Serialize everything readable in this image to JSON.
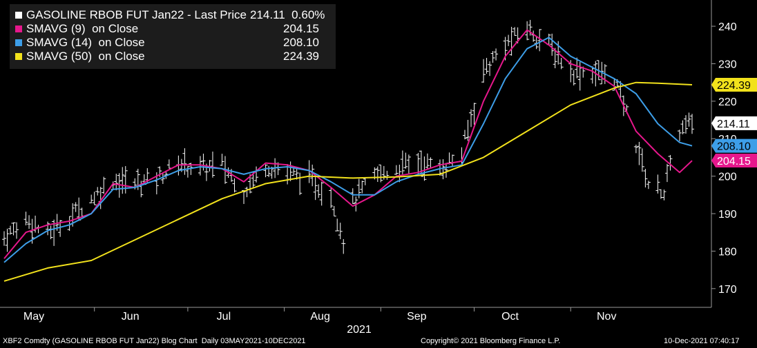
{
  "legend": [
    {
      "name": "GASOLINE RBOB FUT Jan22 - Last Price",
      "value": "214.11  0.60%",
      "color": "#ffffff"
    },
    {
      "name": "SMAVG (9)  on Close",
      "value": "204.15",
      "color": "#e6178c"
    },
    {
      "name": "SMAVG (14)  on Close",
      "value": "208.10",
      "color": "#3d9ee8"
    },
    {
      "name": "SMAVG (50)  on Close",
      "value": "224.39",
      "color": "#f2e21c"
    }
  ],
  "footer": {
    "left": "XBF2 Comdty (GASOLINE RBOB FUT Jan22) Blog Chart  Daily 03MAY2021-10DEC2021",
    "center": "Copyright© 2021 Bloomberg Finance L.P.",
    "right": "10-Dec-2021 07:40:17"
  },
  "chart_data": {
    "type": "line",
    "title": "GASOLINE RBOB FUT Jan22",
    "x_axis": {
      "ticks": [
        "May",
        "Jun",
        "Jul",
        "Aug",
        "Sep",
        "Oct",
        "Nov"
      ],
      "year_label": "2021",
      "range": [
        "2021-05-03",
        "2021-12-10"
      ]
    },
    "y_axis": {
      "ticks": [
        170,
        180,
        190,
        200,
        210,
        220,
        230,
        240
      ],
      "range": [
        165,
        247
      ],
      "position": "right"
    },
    "grid": false,
    "legend_position": "top-left",
    "series": [
      {
        "name": "GASOLINE RBOB FUT Jan22 - Last Price",
        "kind": "ohlc-bars",
        "color": "#ffffff",
        "anchors": [
          [
            "2021-05-03",
            183.5
          ],
          [
            "2021-05-10",
            188.5
          ],
          [
            "2021-05-17",
            184.5
          ],
          [
            "2021-05-24",
            189
          ],
          [
            "2021-05-31",
            194
          ],
          [
            "2021-06-07",
            199
          ],
          [
            "2021-06-14",
            198
          ],
          [
            "2021-06-21",
            199.5
          ],
          [
            "2021-06-28",
            203.5
          ],
          [
            "2021-07-05",
            202
          ],
          [
            "2021-07-12",
            203
          ],
          [
            "2021-07-19",
            196
          ],
          [
            "2021-07-26",
            203
          ],
          [
            "2021-08-02",
            201
          ],
          [
            "2021-08-09",
            199
          ],
          [
            "2021-08-16",
            195
          ],
          [
            "2021-08-20",
            183
          ],
          [
            "2021-08-23",
            193
          ],
          [
            "2021-08-30",
            200
          ],
          [
            "2021-09-06",
            202
          ],
          [
            "2021-09-13",
            204
          ],
          [
            "2021-09-20",
            202
          ],
          [
            "2021-09-27",
            206
          ],
          [
            "2021-10-04",
            228
          ],
          [
            "2021-10-11",
            235
          ],
          [
            "2021-10-18",
            239.5
          ],
          [
            "2021-10-25",
            235
          ],
          [
            "2021-11-01",
            228
          ],
          [
            "2021-11-08",
            228
          ],
          [
            "2021-11-15",
            226
          ],
          [
            "2021-11-19",
            217
          ],
          [
            "2021-11-26",
            198
          ],
          [
            "2021-12-01",
            196
          ],
          [
            "2021-12-06",
            212
          ],
          [
            "2021-12-10",
            214.11
          ]
        ]
      },
      {
        "name": "SMAVG (9)  on Close",
        "kind": "line",
        "color": "#e6178c",
        "points": [
          [
            "2021-05-03",
            178
          ],
          [
            "2021-05-10",
            185
          ],
          [
            "2021-05-17",
            187
          ],
          [
            "2021-05-24",
            188
          ],
          [
            "2021-05-31",
            190
          ],
          [
            "2021-06-07",
            198
          ],
          [
            "2021-06-14",
            197
          ],
          [
            "2021-06-21",
            200
          ],
          [
            "2021-06-28",
            203
          ],
          [
            "2021-07-05",
            203
          ],
          [
            "2021-07-12",
            202
          ],
          [
            "2021-07-19",
            198.5
          ],
          [
            "2021-07-26",
            203.5
          ],
          [
            "2021-08-02",
            203
          ],
          [
            "2021-08-09",
            201.5
          ],
          [
            "2021-08-16",
            197
          ],
          [
            "2021-08-23",
            192
          ],
          [
            "2021-08-30",
            195
          ],
          [
            "2021-09-06",
            200
          ],
          [
            "2021-09-13",
            201
          ],
          [
            "2021-09-20",
            203
          ],
          [
            "2021-09-27",
            204
          ],
          [
            "2021-10-04",
            220
          ],
          [
            "2021-10-11",
            232
          ],
          [
            "2021-10-18",
            239
          ],
          [
            "2021-10-25",
            235
          ],
          [
            "2021-11-01",
            230
          ],
          [
            "2021-11-08",
            228
          ],
          [
            "2021-11-15",
            224
          ],
          [
            "2021-11-22",
            212
          ],
          [
            "2021-11-29",
            206
          ],
          [
            "2021-12-06",
            201
          ],
          [
            "2021-12-10",
            204.15
          ]
        ]
      },
      {
        "name": "SMAVG (14)  on Close",
        "kind": "line",
        "color": "#3d9ee8",
        "points": [
          [
            "2021-05-03",
            177
          ],
          [
            "2021-05-10",
            182
          ],
          [
            "2021-05-17",
            185.5
          ],
          [
            "2021-05-24",
            187
          ],
          [
            "2021-05-31",
            190
          ],
          [
            "2021-06-07",
            196.5
          ],
          [
            "2021-06-14",
            197
          ],
          [
            "2021-06-21",
            199
          ],
          [
            "2021-06-28",
            201.5
          ],
          [
            "2021-07-05",
            202.5
          ],
          [
            "2021-07-12",
            202
          ],
          [
            "2021-07-19",
            200.5
          ],
          [
            "2021-07-26",
            202
          ],
          [
            "2021-08-02",
            202.5
          ],
          [
            "2021-08-09",
            201.5
          ],
          [
            "2021-08-16",
            198.5
          ],
          [
            "2021-08-23",
            195
          ],
          [
            "2021-08-30",
            195
          ],
          [
            "2021-09-06",
            198.5
          ],
          [
            "2021-09-13",
            200.5
          ],
          [
            "2021-09-20",
            202
          ],
          [
            "2021-09-27",
            203
          ],
          [
            "2021-10-04",
            214
          ],
          [
            "2021-10-11",
            226
          ],
          [
            "2021-10-18",
            234
          ],
          [
            "2021-10-25",
            237
          ],
          [
            "2021-11-01",
            232
          ],
          [
            "2021-11-08",
            229
          ],
          [
            "2021-11-15",
            226
          ],
          [
            "2021-11-22",
            222
          ],
          [
            "2021-11-29",
            214
          ],
          [
            "2021-12-06",
            209
          ],
          [
            "2021-12-10",
            208.1
          ]
        ]
      },
      {
        "name": "SMAVG (50)  on Close",
        "kind": "line",
        "color": "#f2e21c",
        "points": [
          [
            "2021-05-03",
            172
          ],
          [
            "2021-05-17",
            175.5
          ],
          [
            "2021-05-31",
            177.5
          ],
          [
            "2021-06-14",
            183
          ],
          [
            "2021-06-28",
            188.5
          ],
          [
            "2021-07-12",
            194
          ],
          [
            "2021-07-26",
            198
          ],
          [
            "2021-08-09",
            200
          ],
          [
            "2021-08-23",
            199.5
          ],
          [
            "2021-09-06",
            199.8
          ],
          [
            "2021-09-20",
            200.5
          ],
          [
            "2021-10-04",
            205
          ],
          [
            "2021-10-18",
            212
          ],
          [
            "2021-11-01",
            219
          ],
          [
            "2021-11-15",
            223.5
          ],
          [
            "2021-11-22",
            225
          ],
          [
            "2021-11-29",
            224.8
          ],
          [
            "2021-12-10",
            224.39
          ]
        ]
      }
    ],
    "last_value_tags": [
      {
        "value": 224.39,
        "label": "224.39",
        "bg": "#f2e21c",
        "fg": "#000000"
      },
      {
        "value": 214.11,
        "label": "214.11",
        "bg": "#ffffff",
        "fg": "#000000"
      },
      {
        "value": 208.1,
        "label": "208.10",
        "bg": "#3d9ee8",
        "fg": "#000000"
      },
      {
        "value": 204.15,
        "label": "204.15",
        "bg": "#e6178c",
        "fg": "#ffffff"
      }
    ]
  }
}
